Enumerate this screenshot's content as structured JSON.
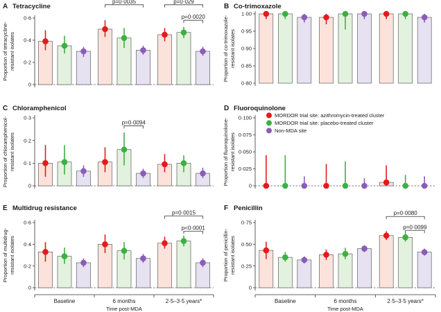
{
  "colors": {
    "azithro": "#e41a1c",
    "placebo": "#3cb043",
    "nonmda": "#8b5cb8",
    "azithro_fill": "#fbe3dc",
    "placebo_fill": "#e3f2de",
    "nonmda_fill": "#e6e2f1"
  },
  "legend": [
    {
      "key": "azithro",
      "label": "MORDOR trial site: azithromycin-treated cluster"
    },
    {
      "key": "placebo",
      "label": "MORDOR trial site: placebo-treated cluster"
    },
    {
      "key": "nonmda",
      "label": "Non-MDA site"
    }
  ],
  "x_groups": [
    "Baseline",
    "6 months",
    "2·5–3·5 years*"
  ],
  "x_axis_label": "Time post-MDA",
  "chart_data": [
    {
      "type": "bar",
      "panel": "A",
      "title": "Tetracycline",
      "ylabel_lines": [
        "Proportion of tetracycline-",
        "resistant isolates"
      ],
      "ylim": [
        0,
        0.6
      ],
      "yticks": [
        0,
        0.2,
        0.4,
        0.6
      ],
      "yticklabels": [
        "0",
        "0·2",
        "0·4",
        "0·6"
      ],
      "categories": [
        "Baseline",
        "6 months",
        "2·5–3·5 years*"
      ],
      "series": [
        {
          "key": "azithro",
          "values": [
            0.39,
            0.5,
            0.45
          ],
          "ci_low": [
            0.31,
            0.43,
            0.39
          ],
          "ci_high": [
            0.49,
            0.58,
            0.51
          ]
        },
        {
          "key": "placebo",
          "values": [
            0.35,
            0.42,
            0.47
          ],
          "ci_low": [
            0.28,
            0.33,
            0.42
          ],
          "ci_high": [
            0.44,
            0.51,
            0.52
          ]
        },
        {
          "key": "nonmda",
          "values": [
            0.3,
            0.31,
            0.3
          ],
          "ci_low": [
            0.25,
            0.27,
            0.26
          ],
          "ci_high": [
            0.34,
            0.35,
            0.34
          ]
        }
      ],
      "annotations": [
        {
          "text": "p=0·0035",
          "from": [
            1,
            0
          ],
          "to": [
            1,
            2
          ],
          "y": 0.72
        },
        {
          "text": "p=0·029",
          "from": [
            2,
            0
          ],
          "to": [
            2,
            2
          ],
          "y": 0.72
        },
        {
          "text": "p=0·0020",
          "from": [
            2,
            1
          ],
          "to": [
            2,
            2
          ],
          "y": 0.58
        }
      ]
    },
    {
      "type": "bar",
      "panel": "B",
      "title": "Co-trimoxazole",
      "ylabel_lines": [
        "Proportion of co-trimoxazole-",
        "resistant isolates"
      ],
      "ylim": [
        0.8,
        1.0
      ],
      "yticks": [
        0.8,
        0.85,
        0.9,
        0.95,
        1.0
      ],
      "yticklabels": [
        "0·80",
        "0·85",
        "0·90",
        "0·95",
        "1·00"
      ],
      "categories": [
        "Baseline",
        "6 months",
        "2·5–3·5 years*"
      ],
      "series": [
        {
          "key": "azithro",
          "values": [
            1.0,
            0.99,
            1.0
          ],
          "ci_low": [
            0.985,
            0.97,
            0.985
          ],
          "ci_high": [
            1.0,
            1.0,
            1.0
          ]
        },
        {
          "key": "placebo",
          "values": [
            1.0,
            1.0,
            1.0
          ],
          "ci_low": [
            0.985,
            0.955,
            0.985
          ],
          "ci_high": [
            1.0,
            1.0,
            1.0
          ]
        },
        {
          "key": "nonmda",
          "values": [
            0.99,
            1.0,
            0.99
          ],
          "ci_low": [
            0.975,
            0.985,
            0.975
          ],
          "ci_high": [
            1.0,
            1.0,
            1.0
          ]
        }
      ],
      "annotations": []
    },
    {
      "type": "bar",
      "panel": "C",
      "title": "Chloramphenicol",
      "ylabel_lines": [
        "Proportion of chloramphenicol-",
        "resistant isolates"
      ],
      "ylim": [
        0,
        0.3
      ],
      "yticks": [
        0,
        0.1,
        0.2,
        0.3
      ],
      "yticklabels": [
        "0",
        "0·1",
        "0·2",
        "0·3"
      ],
      "categories": [
        "Baseline",
        "6 months",
        "2·5–3·5 years*"
      ],
      "series": [
        {
          "key": "azithro",
          "values": [
            0.1,
            0.105,
            0.095
          ],
          "ci_low": [
            0.04,
            0.06,
            0.06
          ],
          "ci_high": [
            0.18,
            0.17,
            0.14
          ]
        },
        {
          "key": "placebo",
          "values": [
            0.105,
            0.16,
            0.1
          ],
          "ci_low": [
            0.05,
            0.09,
            0.06
          ],
          "ci_high": [
            0.18,
            0.235,
            0.135
          ]
        },
        {
          "key": "nonmda",
          "values": [
            0.065,
            0.055,
            0.055
          ],
          "ci_low": [
            0.04,
            0.035,
            0.035
          ],
          "ci_high": [
            0.09,
            0.075,
            0.08
          ]
        }
      ],
      "annotations": [
        {
          "text": "p=0·0094",
          "from": [
            1,
            1
          ],
          "to": [
            1,
            2
          ],
          "y": 0.265
        }
      ]
    },
    {
      "type": "bar",
      "panel": "D",
      "title": "Fluoroquinolone",
      "ylabel_lines": [
        "Proportion of fluoroquinolone-",
        "resistant isolates"
      ],
      "ylim": [
        0,
        0.1
      ],
      "yticks": [
        0,
        0.025,
        0.05,
        0.075,
        0.1
      ],
      "yticklabels": [
        "0",
        "0·025",
        "0·050",
        "0·075",
        "0·100"
      ],
      "categories": [
        "Baseline",
        "6 months",
        "2·5–3·5 years*"
      ],
      "series": [
        {
          "key": "azithro",
          "values": [
            0.0,
            0.0,
            0.005
          ],
          "ci_low": [
            0,
            0,
            0
          ],
          "ci_high": [
            0.045,
            0.032,
            0.03
          ]
        },
        {
          "key": "placebo",
          "values": [
            0.0,
            0.0,
            0.0
          ],
          "ci_low": [
            0,
            0,
            0
          ],
          "ci_high": [
            0.045,
            0.036,
            0.016
          ]
        },
        {
          "key": "nonmda",
          "values": [
            0.0,
            0.0,
            0.0
          ],
          "ci_low": [
            0,
            0,
            0
          ],
          "ci_high": [
            0.014,
            0.011,
            0.014
          ]
        }
      ],
      "annotations": []
    },
    {
      "type": "bar",
      "panel": "E",
      "title": "Multidrug resistance",
      "ylabel_lines": [
        "Proportion of multidrug-",
        "resistant isolates"
      ],
      "ylim": [
        0,
        0.6
      ],
      "yticks": [
        0,
        0.2,
        0.4,
        0.6
      ],
      "yticklabels": [
        "0",
        "0·2",
        "0·4",
        "0·6"
      ],
      "categories": [
        "Baseline",
        "6 months",
        "2·5–3·5 years*"
      ],
      "series": [
        {
          "key": "azithro",
          "values": [
            0.33,
            0.4,
            0.41
          ],
          "ci_low": [
            0.24,
            0.32,
            0.36
          ],
          "ci_high": [
            0.42,
            0.49,
            0.47
          ]
        },
        {
          "key": "placebo",
          "values": [
            0.29,
            0.34,
            0.43
          ],
          "ci_low": [
            0.22,
            0.26,
            0.38
          ],
          "ci_high": [
            0.37,
            0.42,
            0.48
          ]
        },
        {
          "key": "nonmda",
          "values": [
            0.23,
            0.27,
            0.23
          ],
          "ci_low": [
            0.19,
            0.23,
            0.19
          ],
          "ci_high": [
            0.27,
            0.31,
            0.27
          ]
        }
      ],
      "annotations": [
        {
          "text": "p=0·0015",
          "from": [
            2,
            0
          ],
          "to": [
            2,
            2
          ],
          "y": 0.66
        },
        {
          "text": "p<0·0001",
          "from": [
            2,
            1
          ],
          "to": [
            2,
            2
          ],
          "y": 0.52
        }
      ]
    },
    {
      "type": "bar",
      "panel": "F",
      "title": "Penicillin",
      "ylabel_lines": [
        "Proportion of penicillin-",
        "resistant isolates"
      ],
      "ylim": [
        0,
        0.75
      ],
      "yticks": [
        0,
        0.25,
        0.5,
        0.75
      ],
      "yticklabels": [
        "0",
        "0·25",
        "0·50",
        "0·75"
      ],
      "categories": [
        "Baseline",
        "6 months",
        "2·5–3·5 years*"
      ],
      "series": [
        {
          "key": "azithro",
          "values": [
            0.43,
            0.38,
            0.6
          ],
          "ci_low": [
            0.33,
            0.32,
            0.55
          ],
          "ci_high": [
            0.53,
            0.44,
            0.65
          ]
        },
        {
          "key": "placebo",
          "values": [
            0.35,
            0.39,
            0.58
          ],
          "ci_low": [
            0.3,
            0.33,
            0.53
          ],
          "ci_high": [
            0.41,
            0.46,
            0.63
          ]
        },
        {
          "key": "nonmda",
          "values": [
            0.32,
            0.45,
            0.41
          ],
          "ci_low": [
            0.28,
            0.41,
            0.37
          ],
          "ci_high": [
            0.36,
            0.49,
            0.45
          ]
        }
      ],
      "annotations": [
        {
          "text": "p=0·0080",
          "from": [
            2,
            0
          ],
          "to": [
            2,
            2
          ],
          "y": 0.82
        },
        {
          "text": "p=0·0099",
          "from": [
            2,
            1
          ],
          "to": [
            2,
            2
          ],
          "y": 0.66
        }
      ]
    }
  ]
}
